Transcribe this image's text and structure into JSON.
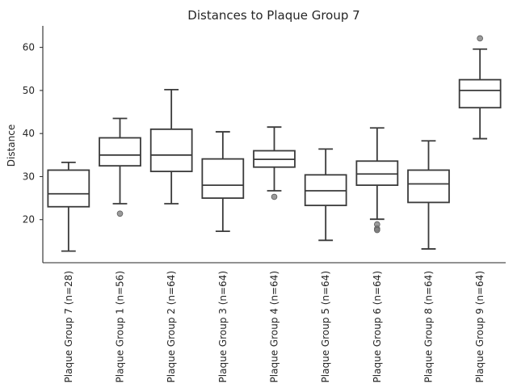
{
  "chart_data": {
    "type": "box",
    "title": "Distances to Plaque Group 7",
    "xlabel": "",
    "ylabel": "Distance",
    "ylim": [
      10,
      65
    ],
    "yticks": [
      20,
      30,
      40,
      50,
      60
    ],
    "grid": false,
    "categories": [
      "Plaque Group 7 (n=28)",
      "Plaque Group 1 (n=56)",
      "Plaque Group 2 (n=64)",
      "Plaque Group 3 (n=64)",
      "Plaque Group 4 (n=64)",
      "Plaque Group 5 (n=64)",
      "Plaque Group 6 (n=64)",
      "Plaque Group 8 (n=64)",
      "Plaque Group 9 (n=64)"
    ],
    "boxes": [
      {
        "whislo": 12.7,
        "q1": 23.0,
        "med": 26.0,
        "q3": 31.5,
        "whishi": 33.3,
        "fliers": []
      },
      {
        "whislo": 23.7,
        "q1": 32.5,
        "med": 35.0,
        "q3": 39.0,
        "whishi": 43.5,
        "fliers": [
          21.4
        ]
      },
      {
        "whislo": 23.7,
        "q1": 31.2,
        "med": 35.0,
        "q3": 41.0,
        "whishi": 50.2,
        "fliers": []
      },
      {
        "whislo": 17.3,
        "q1": 25.0,
        "med": 28.0,
        "q3": 34.1,
        "whishi": 40.4,
        "fliers": []
      },
      {
        "whislo": 26.7,
        "q1": 32.2,
        "med": 34.0,
        "q3": 36.0,
        "whishi": 41.5,
        "fliers": [
          25.3
        ]
      },
      {
        "whislo": 15.2,
        "q1": 23.3,
        "med": 26.7,
        "q3": 30.4,
        "whishi": 36.4,
        "fliers": []
      },
      {
        "whislo": 20.1,
        "q1": 28.0,
        "med": 30.6,
        "q3": 33.6,
        "whishi": 41.3,
        "fliers": [
          18.9,
          17.9,
          17.6
        ]
      },
      {
        "whislo": 13.2,
        "q1": 24.0,
        "med": 28.3,
        "q3": 31.5,
        "whishi": 38.3,
        "fliers": []
      },
      {
        "whislo": 38.8,
        "q1": 46.0,
        "med": 50.0,
        "q3": 52.5,
        "whishi": 59.6,
        "fliers": [
          62.1
        ]
      }
    ]
  }
}
